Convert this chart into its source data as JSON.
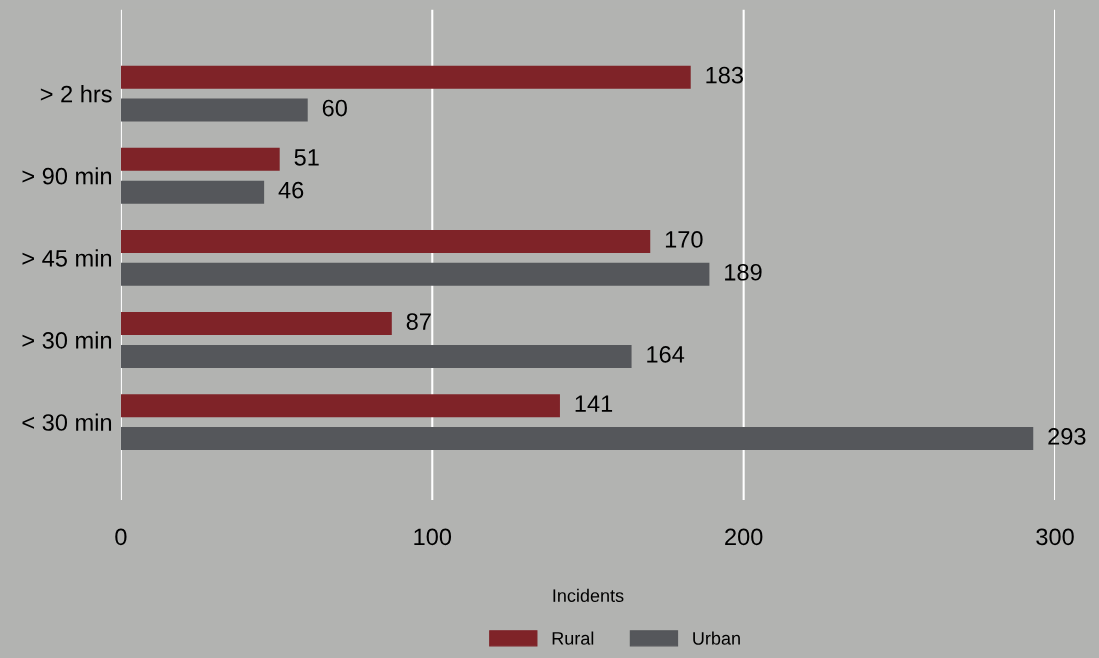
{
  "chart_data": {
    "type": "bar",
    "orientation": "horizontal",
    "xlabel": "Incidents",
    "categories": [
      "> 2 hrs",
      "> 90 min",
      "> 45 min",
      "> 30 min",
      "< 30 min"
    ],
    "series": [
      {
        "name": "Rural",
        "color": "#7f2328",
        "values": [
          183,
          51,
          170,
          87,
          141
        ]
      },
      {
        "name": "Urban",
        "color": "#55575b",
        "values": [
          60,
          46,
          189,
          164,
          293
        ]
      }
    ],
    "xlim": [
      0,
      300
    ],
    "xticks": [
      0,
      100,
      200,
      300
    ],
    "grid": "x",
    "legend": "bottom",
    "data_labels": true
  }
}
